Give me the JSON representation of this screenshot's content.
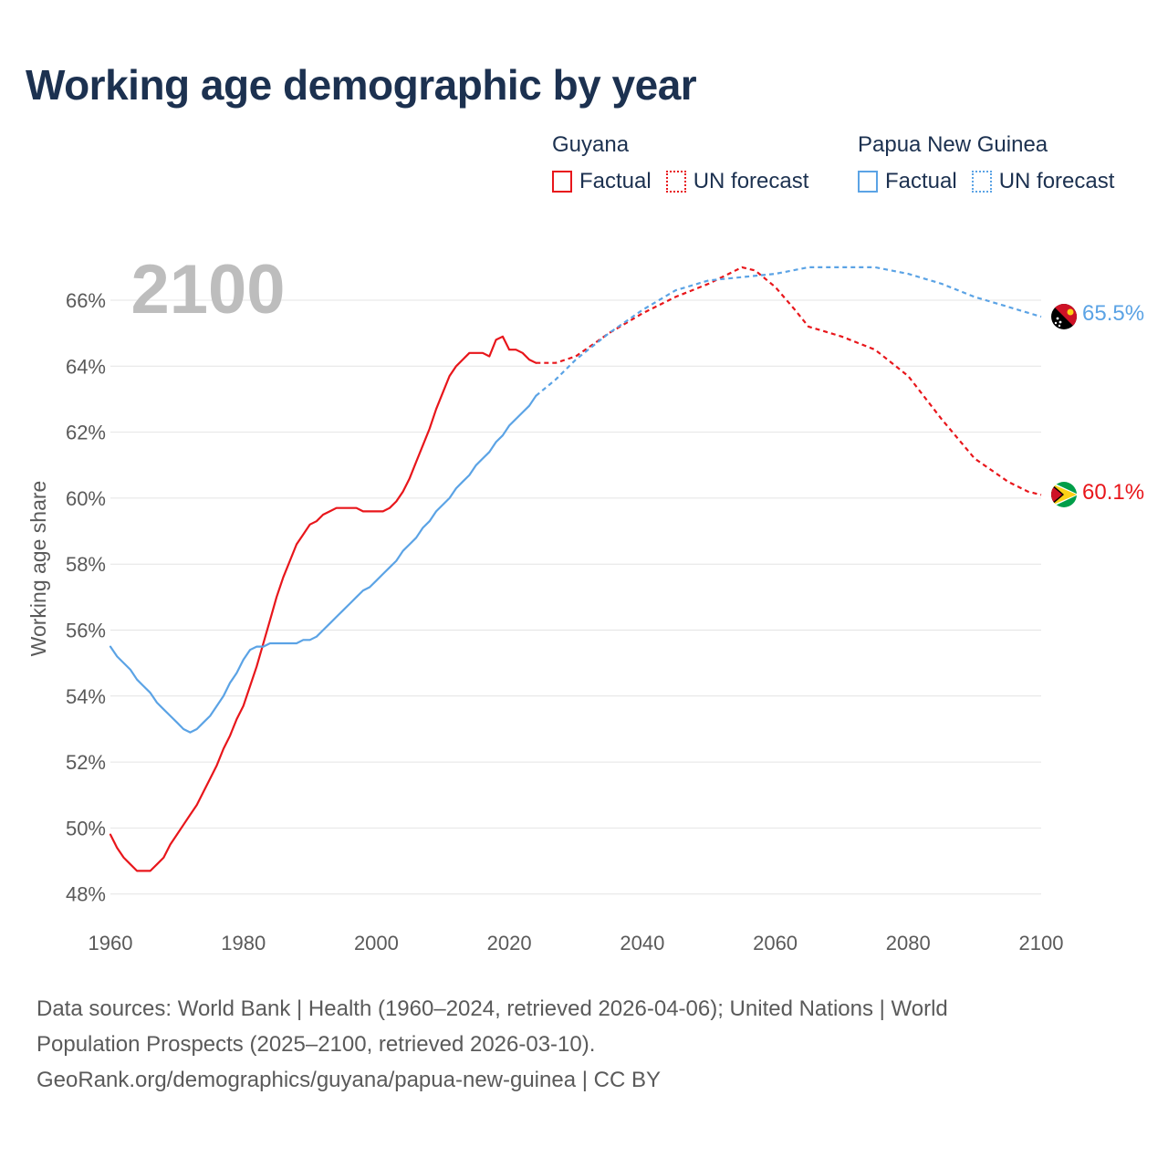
{
  "title": "Working age demographic by year",
  "legend": {
    "groups": [
      {
        "name": "Guyana",
        "factual": "Factual",
        "forecast": "UN forecast",
        "color": "#e8161b"
      },
      {
        "name": "Papua New Guinea",
        "factual": "Factual",
        "forecast": "UN forecast",
        "color": "#5ba3e5"
      }
    ]
  },
  "year_label": "2100",
  "footer": {
    "line1": "Data sources: World Bank | Health (1960–2024, retrieved 2026-04-06); United Nations | World",
    "line2": "Population Prospects (2025–2100, retrieved 2026-03-10).",
    "line3": "GeoRank.org/demographics/guyana/papua-new-guinea | CC BY"
  },
  "chart_data": {
    "type": "line",
    "title": "Working age demographic by year",
    "xlabel": "",
    "ylabel": "Working age share",
    "xlim": [
      1960,
      2100
    ],
    "ylim": [
      47.5,
      67.5
    ],
    "x_ticks": [
      1960,
      1980,
      2000,
      2020,
      2040,
      2060,
      2080,
      2100
    ],
    "y_ticks": [
      48,
      50,
      52,
      54,
      56,
      58,
      60,
      62,
      64,
      66
    ],
    "y_tick_labels": [
      "48%",
      "50%",
      "52%",
      "54%",
      "56%",
      "58%",
      "60%",
      "62%",
      "64%",
      "66%"
    ],
    "grid": true,
    "series": [
      {
        "name": "Guyana",
        "segment": "Factual",
        "style": "solid",
        "color": "#e8161b",
        "x": [
          1960,
          1961,
          1962,
          1963,
          1964,
          1965,
          1966,
          1967,
          1968,
          1969,
          1970,
          1971,
          1972,
          1973,
          1974,
          1975,
          1976,
          1977,
          1978,
          1979,
          1980,
          1981,
          1982,
          1983,
          1984,
          1985,
          1986,
          1987,
          1988,
          1989,
          1990,
          1991,
          1992,
          1993,
          1994,
          1995,
          1996,
          1997,
          1998,
          1999,
          2000,
          2001,
          2002,
          2003,
          2004,
          2005,
          2006,
          2007,
          2008,
          2009,
          2010,
          2011,
          2012,
          2013,
          2014,
          2015,
          2016,
          2017,
          2018,
          2019,
          2020,
          2021,
          2022,
          2023,
          2024
        ],
        "y": [
          49.8,
          49.4,
          49.1,
          48.9,
          48.7,
          48.7,
          48.7,
          48.9,
          49.1,
          49.5,
          49.8,
          50.1,
          50.4,
          50.7,
          51.1,
          51.5,
          51.9,
          52.4,
          52.8,
          53.3,
          53.7,
          54.3,
          54.9,
          55.6,
          56.3,
          57.0,
          57.6,
          58.1,
          58.6,
          58.9,
          59.2,
          59.3,
          59.5,
          59.6,
          59.7,
          59.7,
          59.7,
          59.7,
          59.6,
          59.6,
          59.6,
          59.6,
          59.7,
          59.9,
          60.2,
          60.6,
          61.1,
          61.6,
          62.1,
          62.7,
          63.2,
          63.7,
          64.0,
          64.2,
          64.4,
          64.4,
          64.4,
          64.3,
          64.8,
          64.9,
          64.5,
          64.5,
          64.4,
          64.2,
          64.1
        ]
      },
      {
        "name": "Guyana",
        "segment": "UN forecast",
        "style": "dashed",
        "color": "#e8161b",
        "x": [
          2024,
          2027,
          2030,
          2035,
          2040,
          2045,
          2050,
          2053,
          2055,
          2057,
          2060,
          2063,
          2065,
          2070,
          2075,
          2080,
          2085,
          2090,
          2095,
          2098,
          2100
        ],
        "y": [
          64.1,
          64.1,
          64.3,
          65.0,
          65.6,
          66.1,
          66.5,
          66.8,
          67.0,
          66.9,
          66.4,
          65.7,
          65.2,
          64.9,
          64.5,
          63.7,
          62.4,
          61.2,
          60.5,
          60.2,
          60.1
        ]
      },
      {
        "name": "Papua New Guinea",
        "segment": "Factual",
        "style": "solid",
        "color": "#5ba3e5",
        "x": [
          1960,
          1961,
          1962,
          1963,
          1964,
          1965,
          1966,
          1967,
          1968,
          1969,
          1970,
          1971,
          1972,
          1973,
          1974,
          1975,
          1976,
          1977,
          1978,
          1979,
          1980,
          1981,
          1982,
          1983,
          1984,
          1985,
          1986,
          1987,
          1988,
          1989,
          1990,
          1991,
          1992,
          1993,
          1994,
          1995,
          1996,
          1997,
          1998,
          1999,
          2000,
          2001,
          2002,
          2003,
          2004,
          2005,
          2006,
          2007,
          2008,
          2009,
          2010,
          2011,
          2012,
          2013,
          2014,
          2015,
          2016,
          2017,
          2018,
          2019,
          2020,
          2021,
          2022,
          2023,
          2024
        ],
        "y": [
          55.5,
          55.2,
          55.0,
          54.8,
          54.5,
          54.3,
          54.1,
          53.8,
          53.6,
          53.4,
          53.2,
          53.0,
          52.9,
          53.0,
          53.2,
          53.4,
          53.7,
          54.0,
          54.4,
          54.7,
          55.1,
          55.4,
          55.5,
          55.5,
          55.6,
          55.6,
          55.6,
          55.6,
          55.6,
          55.7,
          55.7,
          55.8,
          56.0,
          56.2,
          56.4,
          56.6,
          56.8,
          57.0,
          57.2,
          57.3,
          57.5,
          57.7,
          57.9,
          58.1,
          58.4,
          58.6,
          58.8,
          59.1,
          59.3,
          59.6,
          59.8,
          60.0,
          60.3,
          60.5,
          60.7,
          61.0,
          61.2,
          61.4,
          61.7,
          61.9,
          62.2,
          62.4,
          62.6,
          62.8,
          63.1
        ]
      },
      {
        "name": "Papua New Guinea",
        "segment": "UN forecast",
        "style": "dashed",
        "color": "#5ba3e5",
        "x": [
          2024,
          2027,
          2030,
          2035,
          2040,
          2045,
          2050,
          2055,
          2060,
          2065,
          2070,
          2075,
          2080,
          2085,
          2090,
          2095,
          2100
        ],
        "y": [
          63.1,
          63.6,
          64.2,
          65.0,
          65.7,
          66.3,
          66.6,
          66.7,
          66.8,
          67.0,
          67.0,
          67.0,
          66.8,
          66.5,
          66.1,
          65.8,
          65.5
        ]
      }
    ],
    "end_labels": [
      {
        "country": "Papua New Guinea",
        "value": 65.5,
        "text": "65.5%",
        "color": "#5ba3e5"
      },
      {
        "country": "Guyana",
        "value": 60.1,
        "text": "60.1%",
        "color": "#e8161b"
      }
    ]
  }
}
